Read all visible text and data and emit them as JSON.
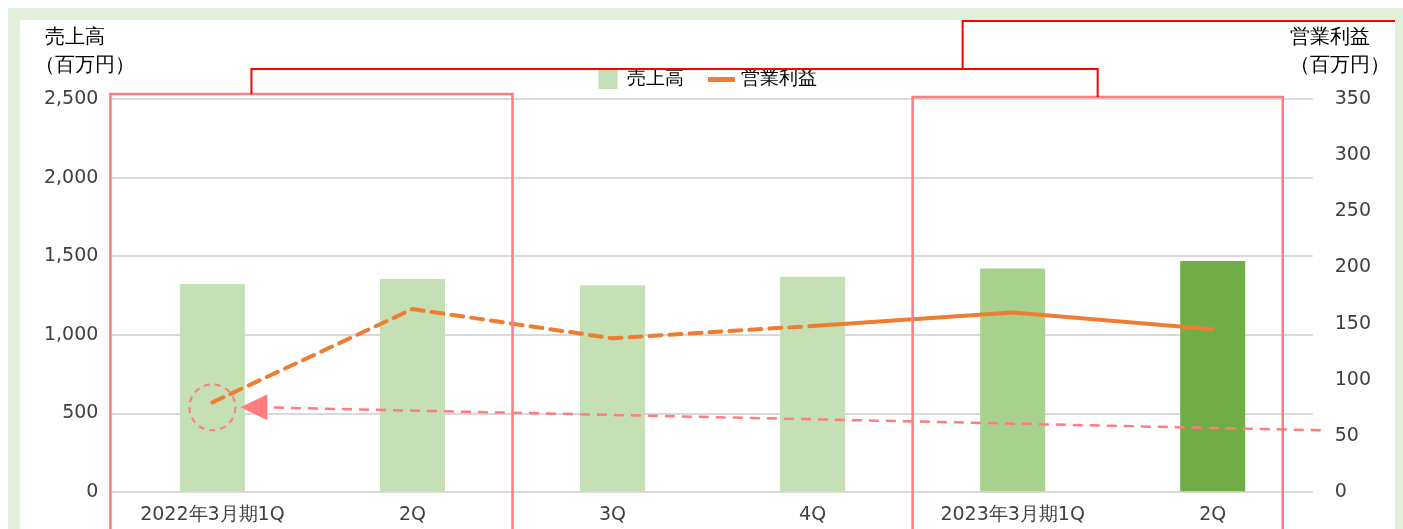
{
  "chart_data": {
    "type": "bar",
    "categories": [
      "2022年3月期1Q",
      "2Q",
      "3Q",
      "4Q",
      "2023年3月期1Q",
      "2Q"
    ],
    "series": [
      {
        "name": "売上高",
        "colors": [
          "#c5e0b4",
          "#c5e0b4",
          "#c5e0b4",
          "#c5e0b4",
          "#a9d18e",
          "#70ad47"
        ],
        "values": [
          1323,
          1356,
          1316,
          1370,
          1423,
          1470
        ]
      },
      {
        "type": "line",
        "axis": "y2",
        "color": "#ed7d31",
        "line_style": "dashed",
        "values": [
          80,
          163,
          137,
          148,
          null,
          null
        ]
      },
      {
        "name": "営業利益",
        "type": "line",
        "axis": "y2",
        "color": "#ed7d31",
        "line_style": "solid",
        "values": [
          null,
          null,
          null,
          148,
          160,
          145
        ]
      }
    ],
    "ylabel": "売上高（百万円）",
    "y2label": "営業利益（百万円）",
    "ylim": [
      0,
      2500
    ],
    "yticks": [
      0,
      {
        "value": 500,
        "label": "500"
      },
      {
        "value": 1000,
        "label": "1,000"
      },
      {
        "value": 1500,
        "label": "1,500"
      },
      {
        "value": 2000,
        "label": "2,000"
      },
      {
        "value": 2500,
        "label": "2,500"
      }
    ],
    "y2lim": [
      0,
      350
    ],
    "y2ticks": [
      0,
      50,
      100,
      150,
      200,
      250,
      300,
      350
    ],
    "grid": "y",
    "legend": "top",
    "marker": "none"
  }
}
